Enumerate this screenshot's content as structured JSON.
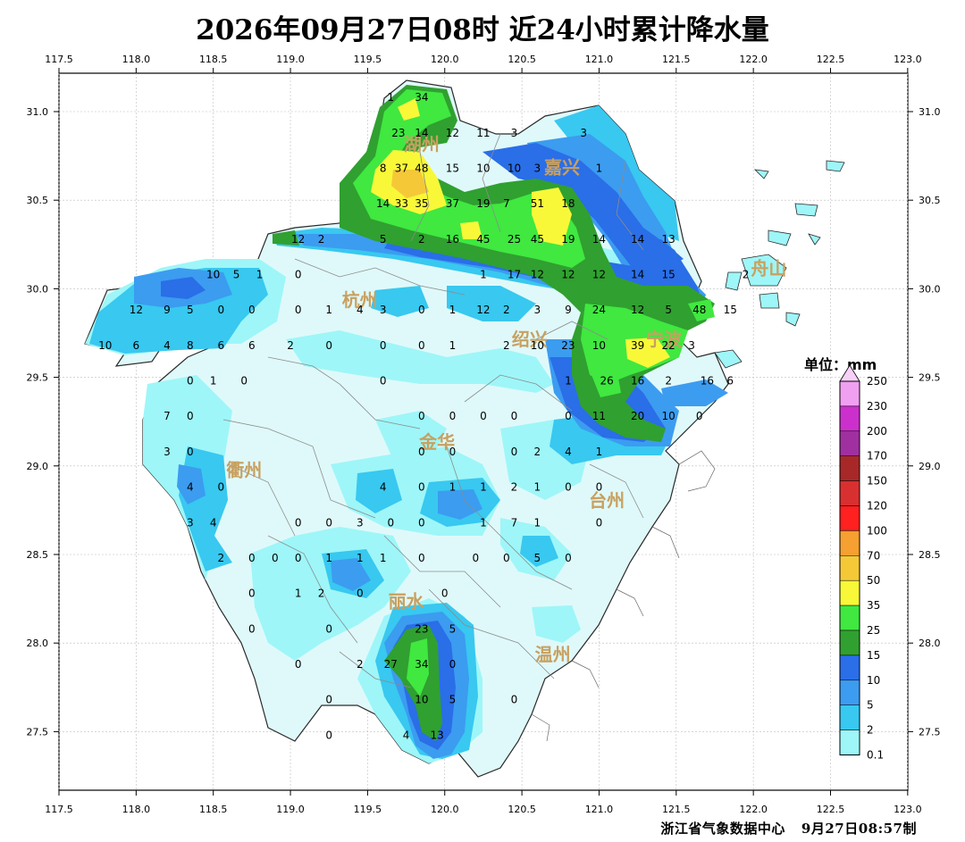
{
  "title": "2026年09月27日08时  近24小时累计降水量",
  "credit": {
    "agency": "浙江省气象数据中心",
    "time": "9月27日08:57制"
  },
  "map": {
    "lon_ticks": [
      "117.5",
      "118.0",
      "118.5",
      "119.0",
      "119.5",
      "120.0",
      "120.5",
      "121.0",
      "121.5",
      "122.0",
      "122.5",
      "123.0"
    ],
    "lat_ticks": [
      "31.0",
      "30.5",
      "30.0",
      "29.5",
      "29.0",
      "28.5",
      "28.0",
      "27.5"
    ],
    "cities": [
      {
        "name": "湖州",
        "lon": 119.85,
        "lat": 30.78
      },
      {
        "name": "嘉兴",
        "lon": 120.76,
        "lat": 30.65
      },
      {
        "name": "杭州",
        "lon": 119.45,
        "lat": 29.9
      },
      {
        "name": "绍兴",
        "lon": 120.55,
        "lat": 29.68
      },
      {
        "name": "宁波",
        "lon": 121.42,
        "lat": 29.68
      },
      {
        "name": "舟山",
        "lon": 122.1,
        "lat": 30.08
      },
      {
        "name": "金华",
        "lon": 119.95,
        "lat": 29.1
      },
      {
        "name": "衢州",
        "lon": 118.7,
        "lat": 28.94
      },
      {
        "name": "台州",
        "lon": 121.05,
        "lat": 28.77
      },
      {
        "name": "丽水",
        "lon": 119.75,
        "lat": 28.2
      },
      {
        "name": "温州",
        "lon": 120.7,
        "lat": 27.9
      }
    ],
    "stations": [
      [
        "1",
        119.65,
        31.08
      ],
      [
        "34",
        119.85,
        31.08
      ],
      [
        "23",
        119.7,
        30.88
      ],
      [
        "14",
        119.85,
        30.88
      ],
      [
        "12",
        120.05,
        30.88
      ],
      [
        "11",
        120.25,
        30.88
      ],
      [
        "3",
        120.45,
        30.88
      ],
      [
        "3",
        120.9,
        30.88
      ],
      [
        "8",
        119.6,
        30.68
      ],
      [
        "37",
        119.72,
        30.68
      ],
      [
        "48",
        119.85,
        30.68
      ],
      [
        "15",
        120.05,
        30.68
      ],
      [
        "10",
        120.25,
        30.68
      ],
      [
        "10",
        120.45,
        30.68
      ],
      [
        "3",
        120.6,
        30.68
      ],
      [
        "1",
        121.0,
        30.68
      ],
      [
        "14",
        119.6,
        30.48
      ],
      [
        "33",
        119.72,
        30.48
      ],
      [
        "35",
        119.85,
        30.48
      ],
      [
        "37",
        120.05,
        30.48
      ],
      [
        "19",
        120.25,
        30.48
      ],
      [
        "7",
        120.4,
        30.48
      ],
      [
        "51",
        120.6,
        30.48
      ],
      [
        "18",
        120.8,
        30.48
      ],
      [
        "12",
        119.05,
        30.28
      ],
      [
        "2",
        119.2,
        30.28
      ],
      [
        "5",
        119.6,
        30.28
      ],
      [
        "2",
        119.85,
        30.28
      ],
      [
        "16",
        120.05,
        30.28
      ],
      [
        "45",
        120.25,
        30.28
      ],
      [
        "25",
        120.45,
        30.28
      ],
      [
        "45",
        120.6,
        30.28
      ],
      [
        "19",
        120.8,
        30.28
      ],
      [
        "14",
        121.0,
        30.28
      ],
      [
        "14",
        121.25,
        30.28
      ],
      [
        "13",
        121.45,
        30.28
      ],
      [
        "10",
        118.5,
        30.08
      ],
      [
        "5",
        118.65,
        30.08
      ],
      [
        "1",
        118.8,
        30.08
      ],
      [
        "0",
        119.05,
        30.08
      ],
      [
        "1",
        120.25,
        30.08
      ],
      [
        "17",
        120.45,
        30.08
      ],
      [
        "12",
        120.6,
        30.08
      ],
      [
        "12",
        120.8,
        30.08
      ],
      [
        "12",
        121.0,
        30.08
      ],
      [
        "14",
        121.25,
        30.08
      ],
      [
        "15",
        121.45,
        30.08
      ],
      [
        "2",
        121.95,
        30.08
      ],
      [
        "12",
        118.0,
        29.88
      ],
      [
        "9",
        118.2,
        29.88
      ],
      [
        "5",
        118.35,
        29.88
      ],
      [
        "0",
        118.55,
        29.88
      ],
      [
        "0",
        118.75,
        29.88
      ],
      [
        "0",
        119.05,
        29.88
      ],
      [
        "1",
        119.25,
        29.88
      ],
      [
        "4",
        119.45,
        29.88
      ],
      [
        "3",
        119.6,
        29.88
      ],
      [
        "0",
        119.85,
        29.88
      ],
      [
        "1",
        120.05,
        29.88
      ],
      [
        "12",
        120.25,
        29.88
      ],
      [
        "2",
        120.4,
        29.88
      ],
      [
        "3",
        120.6,
        29.88
      ],
      [
        "9",
        120.8,
        29.88
      ],
      [
        "24",
        121.0,
        29.88
      ],
      [
        "12",
        121.25,
        29.88
      ],
      [
        "5",
        121.45,
        29.88
      ],
      [
        "48",
        121.65,
        29.88
      ],
      [
        "15",
        121.85,
        29.88
      ],
      [
        "10",
        117.8,
        29.68
      ],
      [
        "6",
        118.0,
        29.68
      ],
      [
        "4",
        118.2,
        29.68
      ],
      [
        "8",
        118.35,
        29.68
      ],
      [
        "6",
        118.55,
        29.68
      ],
      [
        "6",
        118.75,
        29.68
      ],
      [
        "2",
        119.0,
        29.68
      ],
      [
        "0",
        119.25,
        29.68
      ],
      [
        "0",
        119.6,
        29.68
      ],
      [
        "0",
        119.85,
        29.68
      ],
      [
        "1",
        120.05,
        29.68
      ],
      [
        "2",
        120.4,
        29.68
      ],
      [
        "10",
        120.6,
        29.68
      ],
      [
        "23",
        120.8,
        29.68
      ],
      [
        "10",
        121.0,
        29.68
      ],
      [
        "39",
        121.25,
        29.68
      ],
      [
        "22",
        121.45,
        29.68
      ],
      [
        "3",
        121.6,
        29.68
      ],
      [
        "0",
        118.35,
        29.48
      ],
      [
        "1",
        118.5,
        29.48
      ],
      [
        "0",
        118.7,
        29.48
      ],
      [
        "0",
        119.6,
        29.48
      ],
      [
        "1",
        120.8,
        29.48
      ],
      [
        "26",
        121.05,
        29.48
      ],
      [
        "16",
        121.25,
        29.48
      ],
      [
        "2",
        121.45,
        29.48
      ],
      [
        "16",
        121.7,
        29.48
      ],
      [
        "6",
        121.85,
        29.48
      ],
      [
        "7",
        118.2,
        29.28
      ],
      [
        "0",
        118.35,
        29.28
      ],
      [
        "0",
        119.85,
        29.28
      ],
      [
        "0",
        120.05,
        29.28
      ],
      [
        "0",
        120.25,
        29.28
      ],
      [
        "0",
        120.45,
        29.28
      ],
      [
        "0",
        120.8,
        29.28
      ],
      [
        "11",
        121.0,
        29.28
      ],
      [
        "20",
        121.25,
        29.28
      ],
      [
        "10",
        121.45,
        29.28
      ],
      [
        "0",
        121.65,
        29.28
      ],
      [
        "3",
        118.2,
        29.08
      ],
      [
        "0",
        118.35,
        29.08
      ],
      [
        "0",
        119.85,
        29.08
      ],
      [
        "0",
        120.05,
        29.08
      ],
      [
        "0",
        120.45,
        29.08
      ],
      [
        "2",
        120.6,
        29.08
      ],
      [
        "4",
        120.8,
        29.08
      ],
      [
        "1",
        121.0,
        29.08
      ],
      [
        "4",
        118.35,
        28.88
      ],
      [
        "0",
        118.55,
        28.88
      ],
      [
        "4",
        119.6,
        28.88
      ],
      [
        "0",
        119.85,
        28.88
      ],
      [
        "1",
        120.05,
        28.88
      ],
      [
        "1",
        120.25,
        28.88
      ],
      [
        "2",
        120.45,
        28.88
      ],
      [
        "1",
        120.6,
        28.88
      ],
      [
        "0",
        120.8,
        28.88
      ],
      [
        "0",
        121.0,
        28.88
      ],
      [
        "3",
        118.35,
        28.68
      ],
      [
        "4",
        118.5,
        28.68
      ],
      [
        "0",
        119.05,
        28.68
      ],
      [
        "0",
        119.25,
        28.68
      ],
      [
        "3",
        119.45,
        28.68
      ],
      [
        "0",
        119.65,
        28.68
      ],
      [
        "0",
        119.85,
        28.68
      ],
      [
        "1",
        120.25,
        28.68
      ],
      [
        "7",
        120.45,
        28.68
      ],
      [
        "1",
        120.6,
        28.68
      ],
      [
        "0",
        121.0,
        28.68
      ],
      [
        "2",
        118.55,
        28.48
      ],
      [
        "0",
        118.75,
        28.48
      ],
      [
        "0",
        118.9,
        28.48
      ],
      [
        "0",
        119.05,
        28.48
      ],
      [
        "1",
        119.25,
        28.48
      ],
      [
        "1",
        119.45,
        28.48
      ],
      [
        "1",
        119.6,
        28.48
      ],
      [
        "0",
        119.85,
        28.48
      ],
      [
        "0",
        120.2,
        28.48
      ],
      [
        "0",
        120.4,
        28.48
      ],
      [
        "5",
        120.6,
        28.48
      ],
      [
        "0",
        120.8,
        28.48
      ],
      [
        "0",
        118.75,
        28.28
      ],
      [
        "1",
        119.05,
        28.28
      ],
      [
        "2",
        119.2,
        28.28
      ],
      [
        "0",
        119.45,
        28.28
      ],
      [
        "0",
        120.0,
        28.28
      ],
      [
        "0",
        118.75,
        28.08
      ],
      [
        "0",
        119.25,
        28.08
      ],
      [
        "23",
        119.85,
        28.08
      ],
      [
        "5",
        120.05,
        28.08
      ],
      [
        "0",
        119.05,
        27.88
      ],
      [
        "2",
        119.45,
        27.88
      ],
      [
        "27",
        119.65,
        27.88
      ],
      [
        "34",
        119.85,
        27.88
      ],
      [
        "0",
        120.05,
        27.88
      ],
      [
        "0",
        119.25,
        27.68
      ],
      [
        "10",
        119.85,
        27.68
      ],
      [
        "5",
        120.05,
        27.68
      ],
      [
        "0",
        120.45,
        27.68
      ],
      [
        "0",
        119.25,
        27.48
      ],
      [
        "4",
        119.75,
        27.48
      ],
      [
        "13",
        119.95,
        27.48
      ]
    ]
  },
  "legend": {
    "title": "单位：mm",
    "levels": [
      "250",
      "230",
      "200",
      "170",
      "150",
      "120",
      "100",
      "70",
      "50",
      "35",
      "25",
      "15",
      "10",
      "5",
      "2",
      "0.1"
    ],
    "colors": [
      "#f0a0f0",
      "#cc30cc",
      "#a030a0",
      "#a82828",
      "#d83030",
      "#ff2020",
      "#f5a030",
      "#f5c838",
      "#f8f838",
      "#40e840",
      "#30a030",
      "#2a6ee8",
      "#3c9cf0",
      "#38c8f0",
      "#9ef6f8"
    ]
  },
  "colors": {
    "c2": "#9ef6f8",
    "c5": "#38c8f0",
    "c10": "#3c9cf0",
    "c15": "#2a6ee8",
    "c25": "#30a030",
    "c35": "#40e840",
    "c50": "#f8f838",
    "c70": "#f5c838",
    "city_label": "#c8a060"
  }
}
